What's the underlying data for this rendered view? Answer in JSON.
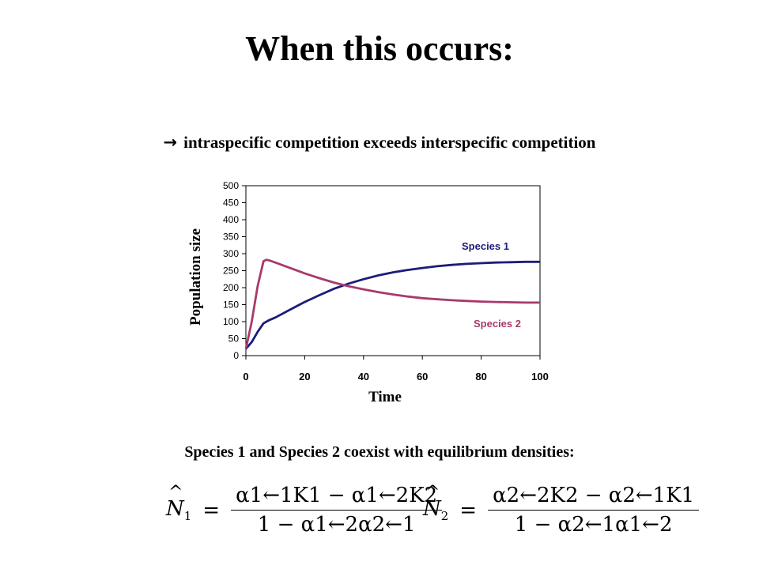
{
  "slide": {
    "title": "When this occurs:",
    "bullet_icon": "right-arrow-icon",
    "bullet_arrow": "→",
    "bullet_text": "intraspecific competition exceeds interspecific competition",
    "conclusion": "Species 1 and Species 2 coexist with equilibrium densities:"
  },
  "equations": {
    "eq1": {
      "lhs": "N",
      "lhs_sub": "1",
      "hat": "^",
      "equals": "=",
      "numerator": "α1←1K1 − α1←2K2",
      "denominator": "1 − α1←2α2←1"
    },
    "eq2": {
      "lhs": "N",
      "lhs_sub": "2",
      "hat": "^",
      "equals": "=",
      "numerator": "α2←2K2 − α2←1K1",
      "denominator": "1 − α2←1α1←2"
    }
  },
  "chart_data": {
    "type": "line",
    "title": "",
    "xlabel": "Time",
    "ylabel": "Population size",
    "xlim": [
      0,
      100
    ],
    "ylim": [
      0,
      500
    ],
    "xticks": [
      "0",
      "20",
      "40",
      "60",
      "80",
      "100"
    ],
    "yticks": [
      "0",
      "50",
      "100",
      "150",
      "200",
      "250",
      "300",
      "350",
      "400",
      "450",
      "500"
    ],
    "grid": false,
    "series": [
      {
        "name": "Species 1",
        "color": "#1c1c7a",
        "x": [
          0,
          2,
          4,
          6,
          8,
          10,
          15,
          20,
          25,
          30,
          35,
          40,
          45,
          50,
          55,
          60,
          65,
          70,
          75,
          80,
          85,
          90,
          95,
          100
        ],
        "y": [
          20,
          40,
          70,
          95,
          105,
          112,
          135,
          158,
          178,
          197,
          212,
          225,
          236,
          245,
          252,
          258,
          263,
          267,
          270,
          272,
          274,
          275,
          276,
          276
        ]
      },
      {
        "name": "Species 2",
        "color": "#a83a6a",
        "x": [
          0,
          2,
          4,
          6,
          7,
          8,
          10,
          15,
          20,
          25,
          30,
          35,
          40,
          45,
          50,
          55,
          60,
          65,
          70,
          75,
          80,
          85,
          90,
          95,
          100
        ],
        "y": [
          20,
          100,
          205,
          278,
          282,
          280,
          274,
          258,
          242,
          228,
          215,
          204,
          195,
          187,
          180,
          174,
          169,
          166,
          163,
          161,
          159,
          158,
          157,
          156,
          156
        ]
      }
    ]
  }
}
